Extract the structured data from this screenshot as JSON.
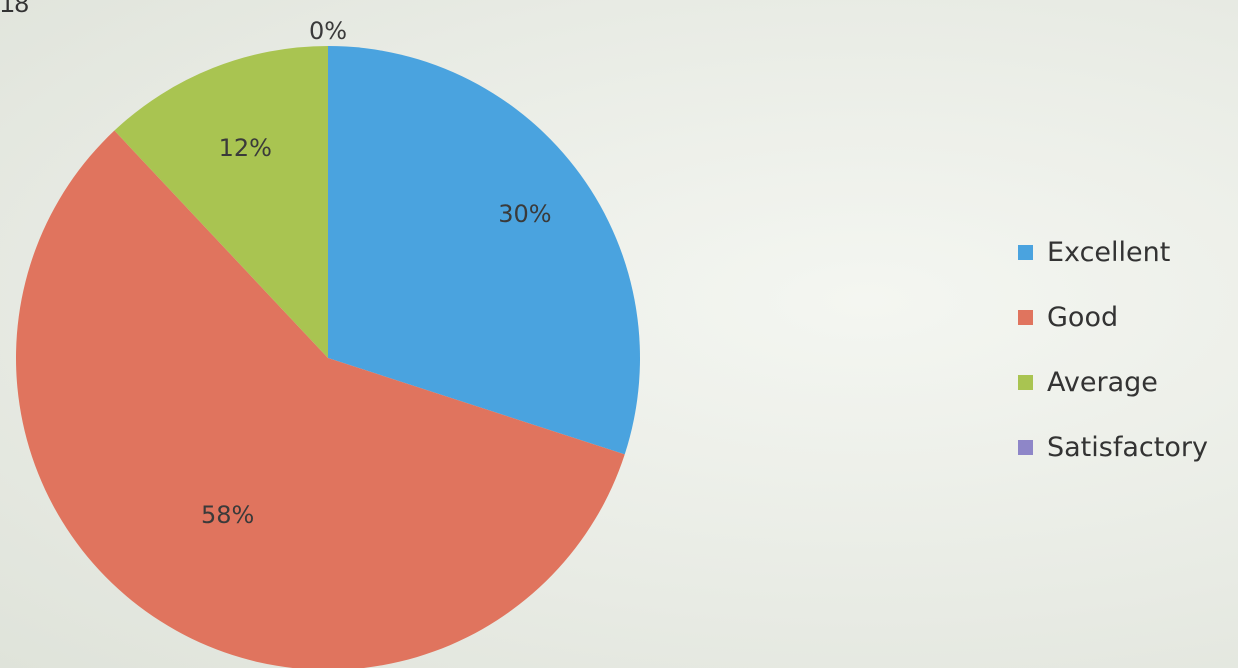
{
  "corner_text": "18",
  "chart_data": {
    "type": "pie",
    "title": "",
    "categories": [
      "Excellent",
      "Good",
      "Average",
      "Satisfactory"
    ],
    "values": [
      30,
      58,
      12,
      0
    ],
    "data_labels": [
      "30%",
      "58%",
      "12%",
      "0%"
    ],
    "colors": [
      "#4aa3df",
      "#e0745e",
      "#a9c451",
      "#8e86c8"
    ],
    "legend": {
      "position": "right",
      "entries": [
        "Excellent",
        "Good",
        "Average",
        "Satisfactory"
      ]
    }
  }
}
